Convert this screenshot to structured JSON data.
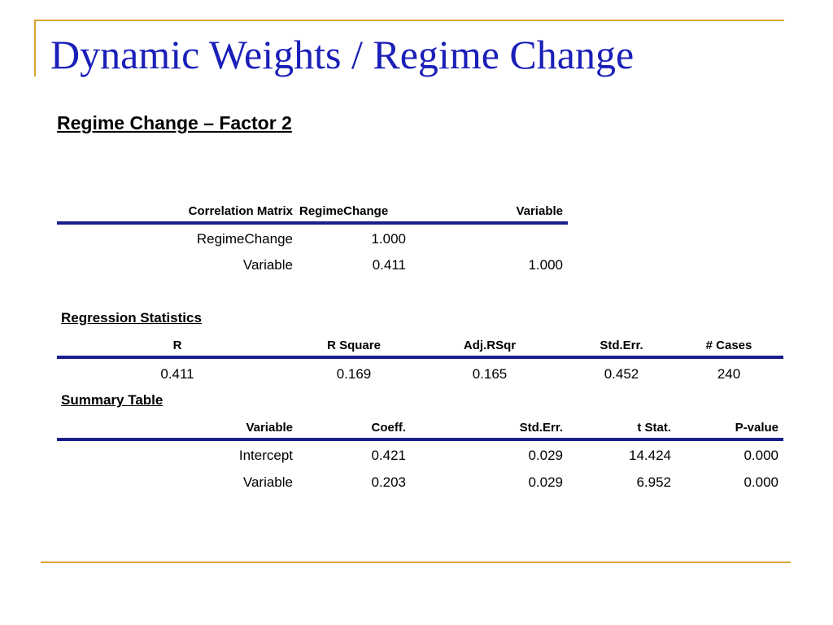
{
  "title": "Dynamic Weights / Regime Change",
  "subtitle": "Regime Change – Factor 2",
  "correlation": {
    "headers": [
      "Correlation Matrix",
      "RegimeChange",
      "Variable"
    ],
    "rows": [
      {
        "label": "RegimeChange",
        "c1": "1.000",
        "c2": ""
      },
      {
        "label": "Variable",
        "c1": "0.411",
        "c2": "1.000"
      }
    ]
  },
  "regression": {
    "label": "Regression Statistics",
    "headers": [
      "R",
      "R Square",
      "Adj.RSqr",
      "Std.Err.",
      "# Cases"
    ],
    "values": [
      "0.411",
      "0.169",
      "0.165",
      "0.452",
      "240"
    ]
  },
  "summary": {
    "label": "Summary Table",
    "headers": [
      "Variable",
      "Coeff.",
      "Std.Err.",
      "t Stat.",
      "P-value"
    ],
    "rows": [
      [
        "Intercept",
        "0.421",
        "0.029",
        "14.424",
        "0.000"
      ],
      [
        "Variable",
        "0.203",
        "0.029",
        "6.952",
        "0.000"
      ]
    ]
  },
  "colors": {
    "title": "#1a1fb8",
    "rule": "#1a1e8c",
    "frame": "#d9a531"
  }
}
